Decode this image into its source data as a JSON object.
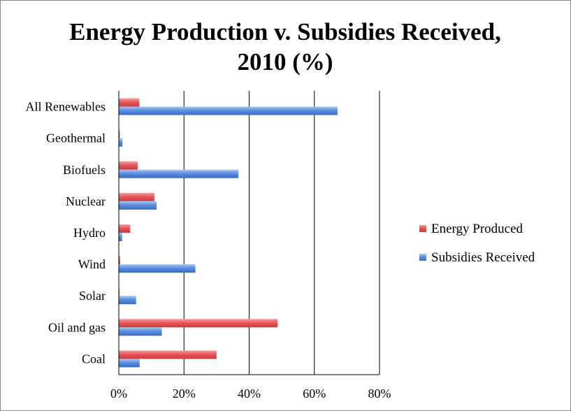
{
  "chart_data": {
    "type": "bar",
    "orientation": "horizontal",
    "title_lines": [
      "Energy Production v. Subsidies Received,",
      "2010 (%)"
    ],
    "categories": [
      "All Renewables",
      "Geothermal",
      "Biofuels",
      "Nuclear",
      "Hydro",
      "Wind",
      "Solar",
      "Oil and gas",
      "Coal"
    ],
    "series": [
      {
        "name": "Energy Produced",
        "color": "#e8585a",
        "values": [
          6.3,
          0.3,
          5.8,
          10.9,
          3.5,
          0.4,
          0.2,
          48.7,
          30.0
        ]
      },
      {
        "name": "Subsidies Received",
        "color": "#5b8fe0",
        "values": [
          67.1,
          1.1,
          36.7,
          11.6,
          1.0,
          23.5,
          5.3,
          13.2,
          6.4
        ]
      }
    ],
    "xlim": [
      0,
      80
    ],
    "xticks": [
      "0%",
      "20%",
      "40%",
      "60%",
      "80%"
    ],
    "xtick_values": [
      0,
      20,
      40,
      60,
      80
    ],
    "grid": true,
    "legend_position": "right"
  }
}
